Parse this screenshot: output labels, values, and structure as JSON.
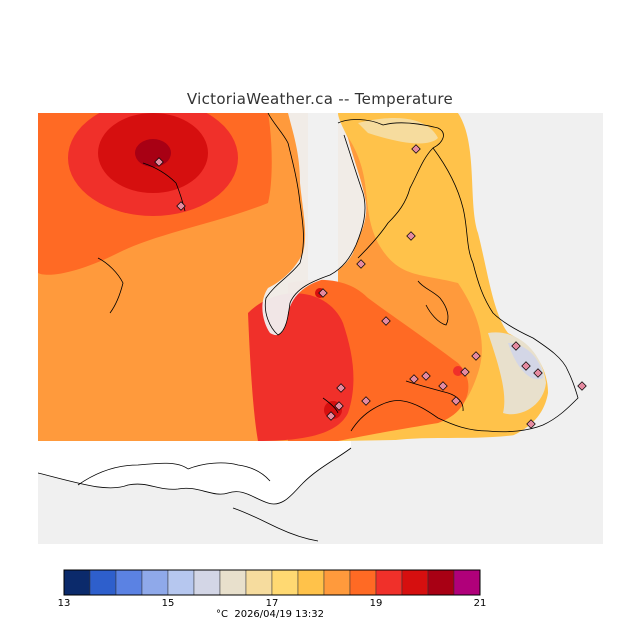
{
  "header": {
    "title": "VictoriaWeather.ca -- Temperature"
  },
  "legend": {
    "unit": "°C",
    "ticks": [
      "13",
      "15",
      "17",
      "19",
      "21"
    ],
    "bins": [
      "#0b2a6b",
      "#2e5fcc",
      "#5b82e3",
      "#8fa9ea",
      "#b6c7ef",
      "#d3d6e6",
      "#e8e0cc",
      "#f6dc9e",
      "#ffd972",
      "#ffc24a",
      "#ff9a3c",
      "#ff6a24",
      "#f0302a",
      "#d60f0f",
      "#a80014",
      "#b0007a"
    ]
  },
  "footer": {
    "timestamp": "2026/04/19 13:32"
  },
  "map": {
    "colors": {
      "outside": "#f0f0f0",
      "land_white": "#ffffff",
      "t17_5": "#ffc24a",
      "t18": "#ff9a3c",
      "t18_5": "#ff6a24",
      "t19": "#f0302a",
      "t19_5": "#d60f0f",
      "t20": "#a80014",
      "t17": "#ffd972",
      "t16_5": "#f6dc9e",
      "t16": "#e8e0cc",
      "t15_5": "#d3d6e6",
      "station": "#e58aa0"
    },
    "stations": 22
  }
}
